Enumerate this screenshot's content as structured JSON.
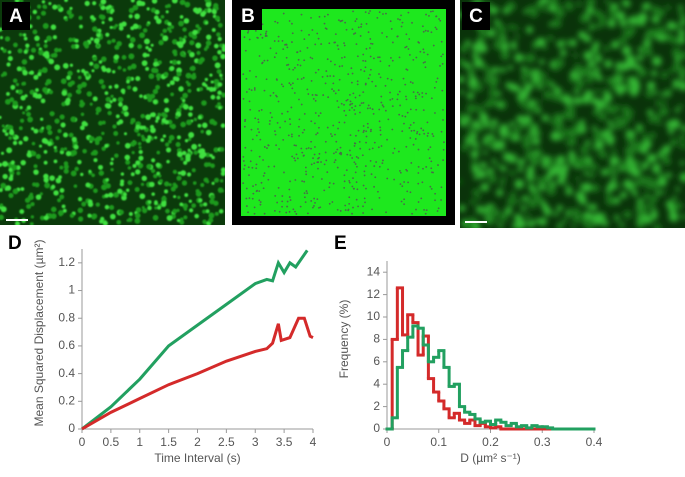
{
  "panel_labels": [
    "A",
    "B",
    "C",
    "D",
    "E"
  ],
  "chart_data": [
    {
      "type": "line",
      "ylabel": "Mean Squared Displacement (µm²)",
      "xlabel": "Time Interval (s)",
      "xlim": [
        0,
        4
      ],
      "xticks": [
        0,
        0.5,
        1,
        1.5,
        2,
        2.5,
        3,
        3.5,
        4
      ],
      "ylim": [
        0,
        1.3
      ],
      "yticks": [
        0,
        0.2,
        0.4,
        0.6,
        0.8,
        1,
        1.2
      ],
      "series": [
        {
          "color": "#22a060",
          "x": [
            0,
            0.5,
            1,
            1.5,
            2,
            2.5,
            3,
            3.2,
            3.3,
            3.4,
            3.5,
            3.6,
            3.7,
            3.9
          ],
          "values": [
            0,
            0.16,
            0.36,
            0.6,
            0.75,
            0.9,
            1.05,
            1.08,
            1.07,
            1.2,
            1.13,
            1.2,
            1.17,
            1.29
          ]
        },
        {
          "color": "#d42a2a",
          "x": [
            0,
            0.5,
            1,
            1.5,
            2,
            2.5,
            3,
            3.2,
            3.3,
            3.4,
            3.45,
            3.6,
            3.75,
            3.85,
            3.95,
            4
          ],
          "values": [
            0,
            0.12,
            0.22,
            0.32,
            0.4,
            0.49,
            0.56,
            0.58,
            0.62,
            0.76,
            0.64,
            0.66,
            0.8,
            0.8,
            0.67,
            0.66
          ]
        }
      ]
    },
    {
      "type": "histogram",
      "ylabel": "Frequency (%)",
      "xlabel": "D (µm² s⁻¹)",
      "xlim": [
        0,
        0.4
      ],
      "xticks": [
        0,
        0.1,
        0.2,
        0.3,
        0.4
      ],
      "ylim": [
        0,
        15
      ],
      "yticks": [
        0,
        2,
        4,
        6,
        8,
        10,
        12,
        14
      ],
      "bins": [
        0,
        0.01,
        0.02,
        0.03,
        0.04,
        0.05,
        0.06,
        0.07,
        0.08,
        0.09,
        0.1,
        0.11,
        0.12,
        0.13,
        0.14,
        0.15,
        0.16,
        0.17,
        0.18,
        0.19,
        0.2,
        0.21,
        0.22,
        0.23,
        0.24,
        0.25,
        0.26,
        0.27,
        0.28,
        0.29,
        0.3,
        0.31,
        0.32,
        0.33,
        0.34,
        0.35,
        0.36,
        0.37,
        0.38,
        0.39,
        0.4
      ],
      "series": [
        {
          "color": "#d42a2a",
          "values": [
            0,
            8,
            12.6,
            8.4,
            10.2,
            9.5,
            6.6,
            8.3,
            4.5,
            3.3,
            2.5,
            1.8,
            1,
            1.4,
            0.8,
            0.5,
            0.8,
            0.3,
            0.5,
            0.2,
            0.1,
            0.2,
            0,
            0,
            0,
            0,
            0,
            0,
            0,
            0,
            0,
            0,
            0,
            0,
            0,
            0,
            0,
            0,
            0,
            0
          ]
        },
        {
          "color": "#22a060",
          "values": [
            0,
            1,
            5.5,
            7,
            8.2,
            9.2,
            9,
            7.5,
            6,
            6.4,
            7,
            5.5,
            3.8,
            4,
            2,
            1.5,
            1.3,
            0.9,
            0.6,
            0.7,
            0.4,
            0.8,
            0.6,
            0.3,
            0.5,
            0.2,
            0.3,
            0.1,
            0.3,
            0.2,
            0.2,
            0.1,
            0,
            0,
            0,
            0,
            0,
            0,
            0,
            0
          ]
        }
      ]
    }
  ]
}
